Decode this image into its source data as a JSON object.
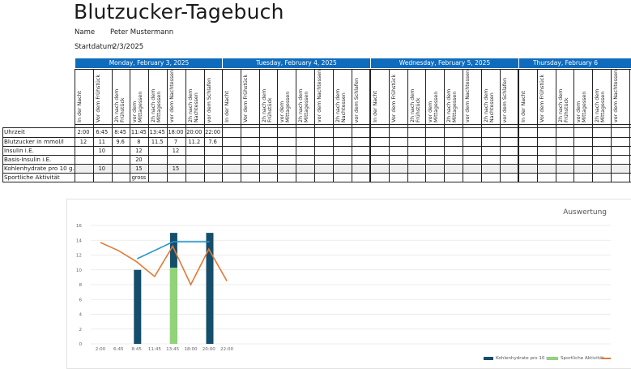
{
  "title": "Blutzucker-Tagebuch",
  "meta": {
    "name_label": "Name",
    "name_value": "Peter Mustermann",
    "start_label": "Startdatum",
    "start_value": "2/3/2025"
  },
  "days": [
    "Monday, February 3, 2025",
    "Tuesday, February 4, 2025",
    "Wednesday, February 5, 2025",
    "Thursday, February 6"
  ],
  "column_headers": [
    "In der Nacht",
    "Vor dem Frühstück",
    "2h nach dem Frühstück",
    "vor dem Mittagessen",
    "2h nach dem Mittagessen",
    "vor dem Nachtessen",
    "2h nach dem Nachtessen",
    "vor dem Schlafen"
  ],
  "rows": [
    {
      "label": "Uhrzeit",
      "values": [
        "2:00",
        "6:45",
        "8:45",
        "11:45",
        "13:45",
        "18:00",
        "20:00",
        "22:00"
      ]
    },
    {
      "label": "Blutzucker in mmol/l",
      "values": [
        "12",
        "11",
        "9.6",
        "8",
        "11.5",
        "7",
        "11.2",
        "7.6"
      ]
    },
    {
      "label": "Insulin i.E.",
      "values": [
        "",
        "10",
        "",
        "12",
        "",
        "12",
        "",
        ""
      ]
    },
    {
      "label": "Basis-Insulin i.E.",
      "values": [
        "",
        "",
        "",
        "20",
        "",
        "",
        "",
        ""
      ]
    },
    {
      "label": "Kohlenhydrate pro 10 g.",
      "values": [
        "",
        "10",
        "",
        "15",
        "",
        "15",
        "",
        ""
      ]
    },
    {
      "label": "Sportliche Aktivität",
      "values": [
        "",
        "",
        "",
        "gross",
        "",
        "",
        "",
        ""
      ]
    }
  ],
  "colors": {
    "header_blue": "#0f6cbd",
    "bar_dark": "#154e6b",
    "bar_green": "#92d37a",
    "line_blue": "#2196c9",
    "line_orange": "#e07b39"
  },
  "chart": {
    "title": "Auswertung",
    "legend": [
      "Kohlenhydrate pro 10 g.",
      "Sportliche Aktivität",
      ""
    ]
  },
  "chart_data": {
    "type": "bar",
    "title": "Auswertung",
    "categories": [
      "2:00",
      "6:45",
      "8:45",
      "11:45",
      "13:45",
      "18:00",
      "20:00",
      "22:00"
    ],
    "ylim": [
      0,
      16
    ],
    "yticks": [
      0,
      2,
      4,
      6,
      8,
      10,
      12,
      14,
      16
    ],
    "grid": true,
    "legend_position": "bottom-right",
    "series": [
      {
        "name": "Kohlenhydrate pro 10 g.",
        "kind": "bar",
        "values": [
          null,
          10,
          null,
          15,
          null,
          15,
          null,
          null
        ]
      },
      {
        "name": "Sportliche Aktivität",
        "kind": "bar",
        "values": [
          null,
          null,
          null,
          10.3,
          null,
          null,
          null,
          null
        ]
      },
      {
        "kind": "line",
        "color": "blue",
        "values": [
          null,
          11.5,
          null,
          13.8,
          null,
          13.8,
          null,
          null
        ]
      },
      {
        "kind": "line",
        "color": "orange",
        "values": [
          13.7,
          12.6,
          11.1,
          9.1,
          13.2,
          8.0,
          12.8,
          8.5
        ]
      }
    ]
  }
}
